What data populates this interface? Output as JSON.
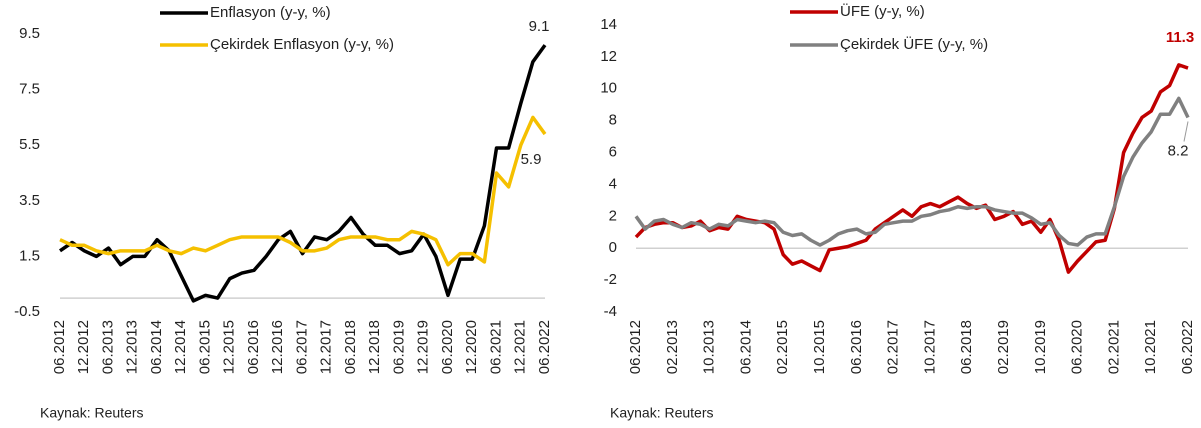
{
  "chart_data": [
    {
      "type": "line",
      "categories": [
        "06.2012",
        null,
        "12.2012",
        null,
        "06.2013",
        null,
        "12.2013",
        null,
        "06.2014",
        null,
        "12.2014",
        null,
        "06.2015",
        null,
        "12.2015",
        null,
        "06.2016",
        null,
        "12.2016",
        null,
        "06.2017",
        null,
        "12.2017",
        null,
        "06.2018",
        null,
        "12.2018",
        null,
        "06.2019",
        null,
        "12.2019",
        null,
        "06.2020",
        null,
        "12.2020",
        null,
        "06.2021",
        null,
        "12.2021",
        null,
        "06.2022"
      ],
      "series": [
        {
          "name": "Enflasyon (y-y, %)",
          "color": "#000000",
          "values": [
            1.7,
            2.0,
            1.7,
            1.5,
            1.8,
            1.2,
            1.5,
            1.5,
            2.1,
            1.7,
            0.8,
            -0.1,
            0.1,
            0.0,
            0.7,
            0.9,
            1.0,
            1.5,
            2.1,
            2.4,
            1.6,
            2.2,
            2.1,
            2.4,
            2.9,
            2.3,
            1.9,
            1.9,
            1.6,
            1.7,
            2.3,
            1.5,
            0.1,
            1.4,
            1.4,
            2.6,
            5.4,
            5.4,
            7.0,
            8.5,
            9.1
          ]
        },
        {
          "name": "Çekirdek Enflasyon (y-y, %)",
          "color": "#f5c000",
          "values": [
            2.1,
            1.9,
            1.9,
            1.7,
            1.6,
            1.7,
            1.7,
            1.7,
            1.9,
            1.7,
            1.6,
            1.8,
            1.7,
            1.9,
            2.1,
            2.2,
            2.2,
            2.2,
            2.2,
            2.0,
            1.7,
            1.7,
            1.8,
            2.1,
            2.2,
            2.2,
            2.2,
            2.1,
            2.1,
            2.4,
            2.3,
            2.1,
            1.2,
            1.6,
            1.6,
            1.3,
            4.5,
            4.0,
            5.5,
            6.5,
            5.9
          ]
        }
      ],
      "ylim": [
        -0.5,
        9.5
      ],
      "yticks": [
        -0.5,
        1.5,
        3.5,
        5.5,
        7.5,
        9.5
      ],
      "source": "Kaynak: Reuters"
    },
    {
      "type": "line",
      "categories": [
        "06.2012",
        null,
        null,
        null,
        "02.2013",
        null,
        null,
        null,
        "10.2013",
        null,
        null,
        null,
        "06.2014",
        null,
        null,
        null,
        "02.2015",
        null,
        null,
        null,
        "10.2015",
        null,
        null,
        null,
        "06.2016",
        null,
        null,
        null,
        "02.2017",
        null,
        null,
        null,
        "10.2017",
        null,
        null,
        null,
        "06.2018",
        null,
        null,
        null,
        "02.2019",
        null,
        null,
        null,
        "10.2019",
        null,
        null,
        null,
        "06.2020",
        null,
        null,
        null,
        "02.2021",
        null,
        null,
        null,
        "10.2021",
        null,
        null,
        null,
        "06.2022"
      ],
      "series": [
        {
          "name": "ÜFE (y-y, %)",
          "color": "#c00000",
          "values": [
            0.7,
            1.3,
            1.5,
            1.6,
            1.6,
            1.3,
            1.4,
            1.7,
            1.1,
            1.3,
            1.2,
            2.0,
            1.8,
            1.7,
            1.6,
            1.2,
            -0.4,
            -1.0,
            -0.8,
            -1.1,
            -1.4,
            -0.1,
            0.0,
            0.1,
            0.3,
            0.5,
            1.2,
            1.6,
            2.0,
            2.4,
            2.0,
            2.6,
            2.8,
            2.6,
            2.9,
            3.2,
            2.8,
            2.5,
            2.7,
            1.8,
            2.0,
            2.3,
            1.5,
            1.7,
            1.0,
            1.8,
            0.5,
            -1.5,
            -0.8,
            -0.2,
            0.4,
            0.5,
            2.5,
            6.0,
            7.2,
            8.2,
            8.6,
            9.8,
            10.2,
            11.5,
            11.3
          ]
        },
        {
          "name": "Çekirdek ÜFE (y-y, %)",
          "color": "#808080",
          "values": [
            2.0,
            1.2,
            1.7,
            1.8,
            1.5,
            1.3,
            1.6,
            1.5,
            1.2,
            1.5,
            1.4,
            1.8,
            1.7,
            1.6,
            1.7,
            1.6,
            1.0,
            0.8,
            0.9,
            0.5,
            0.2,
            0.5,
            0.9,
            1.1,
            1.2,
            0.9,
            1.0,
            1.5,
            1.6,
            1.7,
            1.7,
            2.0,
            2.1,
            2.3,
            2.4,
            2.6,
            2.5,
            2.6,
            2.6,
            2.4,
            2.3,
            2.2,
            2.2,
            1.9,
            1.5,
            1.6,
            0.8,
            0.3,
            0.2,
            0.7,
            0.9,
            0.9,
            2.6,
            4.5,
            5.7,
            6.6,
            7.3,
            8.4,
            8.4,
            9.4,
            8.2
          ]
        }
      ],
      "ylim": [
        -4,
        14
      ],
      "yticks": [
        -4,
        -2,
        0,
        2,
        4,
        6,
        8,
        10,
        12,
        14
      ],
      "source": "Kaynak: Reuters"
    }
  ]
}
